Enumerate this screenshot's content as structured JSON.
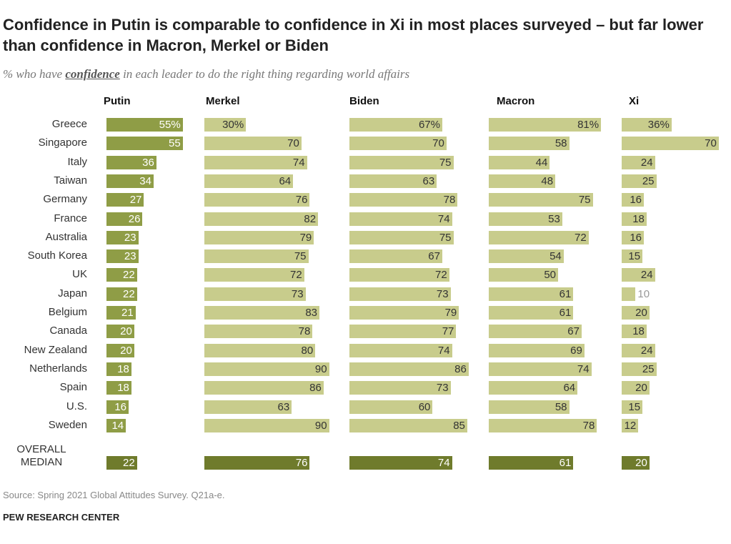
{
  "chart_data": {
    "type": "bar",
    "title": "Confidence in Putin is comparable to confidence in Xi in most places surveyed – but far lower than confidence in Macron, Merkel or Biden",
    "subtitle": [
      "% who have ",
      "confidence",
      " in each leader to do the right thing regarding world affairs"
    ],
    "categories": [
      "Greece",
      "Singapore",
      "Italy",
      "Taiwan",
      "Germany",
      "France",
      "Australia",
      "South Korea",
      "UK",
      "Japan",
      "Belgium",
      "Canada",
      "New Zealand",
      "Netherlands",
      "Spain",
      "U.S.",
      "Sweden",
      "OVERALL MEDIAN"
    ],
    "xlim": [
      0,
      100
    ],
    "median_color": "#6f7b2c",
    "series": [
      {
        "name": "Putin",
        "color": "#8f9d46",
        "values": [
          55,
          55,
          36,
          34,
          27,
          26,
          23,
          23,
          22,
          22,
          21,
          20,
          20,
          18,
          18,
          16,
          14,
          22
        ],
        "value_labels": [
          "55%",
          "55",
          "36",
          "34",
          "27",
          "26",
          "23",
          "23",
          "22",
          "22",
          "21",
          "20",
          "20",
          "18",
          "18",
          "16",
          "14",
          "22"
        ]
      },
      {
        "name": "Merkel",
        "color": "#c8cc8c",
        "values": [
          30,
          70,
          74,
          64,
          76,
          82,
          79,
          75,
          72,
          73,
          83,
          78,
          80,
          90,
          86,
          63,
          90,
          76
        ],
        "value_labels": [
          "30%",
          "70",
          "74",
          "64",
          "76",
          "82",
          "79",
          "75",
          "72",
          "73",
          "83",
          "78",
          "80",
          "90",
          "86",
          "63",
          "90",
          "76"
        ]
      },
      {
        "name": "Biden",
        "color": "#c8cc8c",
        "values": [
          67,
          70,
          75,
          63,
          78,
          74,
          75,
          67,
          72,
          73,
          79,
          77,
          74,
          86,
          73,
          60,
          85,
          74
        ],
        "value_labels": [
          "67%",
          "70",
          "75",
          "63",
          "78",
          "74",
          "75",
          "67",
          "72",
          "73",
          "79",
          "77",
          "74",
          "86",
          "73",
          "60",
          "85",
          "74"
        ]
      },
      {
        "name": "Macron",
        "color": "#c8cc8c",
        "values": [
          81,
          58,
          44,
          48,
          75,
          53,
          72,
          54,
          50,
          61,
          61,
          67,
          69,
          74,
          64,
          58,
          78,
          61
        ],
        "value_labels": [
          "81%",
          "58",
          "44",
          "48",
          "75",
          "53",
          "72",
          "54",
          "50",
          "61",
          "61",
          "67",
          "69",
          "74",
          "64",
          "58",
          "78",
          "61"
        ]
      },
      {
        "name": "Xi",
        "color": "#c8cc8c",
        "values": [
          36,
          70,
          24,
          25,
          16,
          18,
          16,
          15,
          24,
          10,
          20,
          18,
          24,
          25,
          20,
          15,
          12,
          20
        ],
        "value_labels": [
          "36%",
          "70",
          "24",
          "25",
          "16",
          "18",
          "16",
          "15",
          "24",
          "10",
          "20",
          "18",
          "24",
          "25",
          "20",
          "15",
          "12",
          "20"
        ]
      }
    ],
    "source": "Source: Spring 2021 Global Attitudes Survey. Q21a-e.",
    "footer": "PEW RESEARCH CENTER"
  }
}
